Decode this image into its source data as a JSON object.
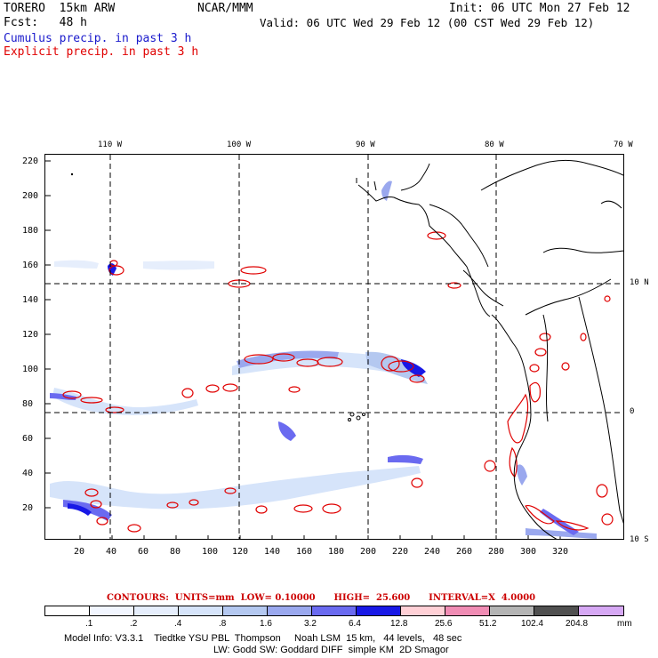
{
  "header": {
    "model_name": "TORERO  15km ARW",
    "center": "NCAR/MMM",
    "init": "Init: 06 UTC Mon 27 Feb 12",
    "fcst": "Fcst:   48 h",
    "valid": "Valid: 06 UTC Wed 29 Feb 12 (00 CST Wed 29 Feb 12)"
  },
  "legend": {
    "cumulus": "Cumulus precip. in past 3 h",
    "explicit": "Explicit precip. in past 3 h",
    "cumulus_color": "#1a1acc",
    "explicit_color": "#e00000"
  },
  "map": {
    "lon_labels": [
      "110 W",
      "100 W",
      "90 W",
      "80 W",
      "70 W"
    ],
    "lat_labels": [
      "10 N",
      "0",
      "10 S"
    ],
    "y_ticks": [
      "220",
      "200",
      "180",
      "160",
      "140",
      "120",
      "100",
      "80",
      "60",
      "40",
      "20"
    ],
    "x_ticks": [
      "20",
      "40",
      "60",
      "80",
      "100",
      "120",
      "140",
      "160",
      "180",
      "200",
      "220",
      "240",
      "260",
      "280",
      "300",
      "320"
    ]
  },
  "contours_info": "CONTOURS:  UNITS=mm  LOW= 0.10000      HIGH=  25.600      INTERVAL=X  4.0000",
  "colorbar": {
    "labels": [
      ".1",
      ".2",
      ".4",
      ".8",
      "1.6",
      "3.2",
      "6.4",
      "12.8",
      "25.6",
      "51.2",
      "102.4",
      "204.8"
    ],
    "unit": "mm",
    "colors": [
      "#ffffff",
      "#f2f6ff",
      "#e6eefc",
      "#d6e4fa",
      "#b4c8f0",
      "#9aa8ee",
      "#6a6af0",
      "#1818e6",
      "#ffd0d6",
      "#f08cb4",
      "#b4b4b4",
      "#505050",
      "#d6a8f4"
    ]
  },
  "model_info": {
    "line1": "Model Info: V3.3.1    Tiedtke YSU PBL  Thompson     Noah LSM  15 km,   44 levels,   48 sec",
    "line2": "LW: Godd SW: Goddard DIFF  simple KM  2D Smagor"
  }
}
